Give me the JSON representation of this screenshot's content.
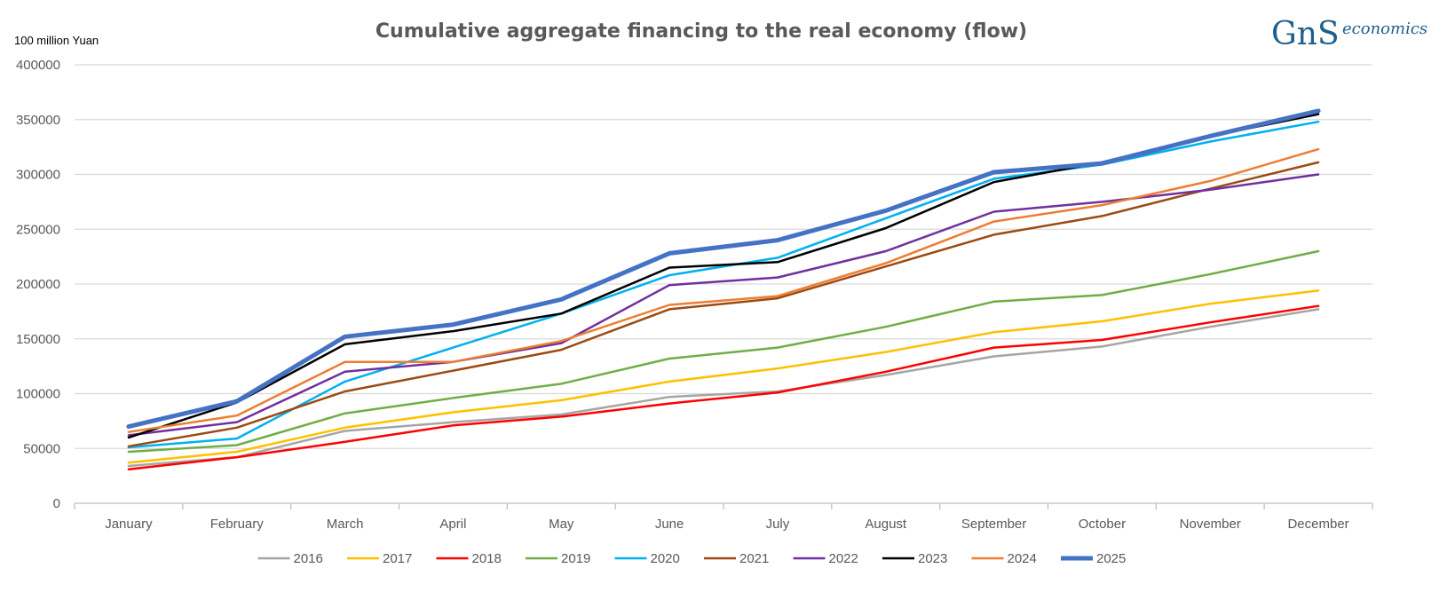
{
  "chart_data": {
    "type": "line",
    "title": "Cumulative aggregate financing to the real economy (flow)",
    "ylabel": "100 million Yuan",
    "ylim": [
      0,
      400000
    ],
    "yticks": [
      "0",
      "50000",
      "100000",
      "150000",
      "200000",
      "250000",
      "300000",
      "350000",
      "400000"
    ],
    "categories": [
      "January",
      "February",
      "March",
      "April",
      "May",
      "June",
      "July",
      "August",
      "September",
      "October",
      "November",
      "December"
    ],
    "legend_position": "bottom",
    "series": [
      {
        "name": "2016",
        "color": "#a5a5a5",
        "width": 2.5,
        "values": [
          34000,
          42000,
          66000,
          74000,
          81000,
          97000,
          102000,
          117000,
          134000,
          143000,
          161000,
          177000
        ]
      },
      {
        "name": "2017",
        "color": "#ffc000",
        "width": 2.5,
        "values": [
          37000,
          47000,
          69000,
          83000,
          94000,
          111000,
          123000,
          138000,
          156000,
          166000,
          182000,
          194000
        ]
      },
      {
        "name": "2018",
        "color": "#ff0000",
        "width": 2.5,
        "values": [
          31000,
          42000,
          56000,
          71000,
          79000,
          91000,
          101000,
          120000,
          142000,
          149000,
          165000,
          180000
        ]
      },
      {
        "name": "2019",
        "color": "#70ad47",
        "width": 2.5,
        "values": [
          47000,
          53000,
          82000,
          96000,
          109000,
          132000,
          142000,
          161000,
          184000,
          190000,
          209000,
          230000
        ]
      },
      {
        "name": "2020",
        "color": "#00b0f0",
        "width": 2.5,
        "values": [
          51000,
          59000,
          111000,
          142000,
          173000,
          208000,
          224000,
          260000,
          296000,
          309000,
          330000,
          348000
        ]
      },
      {
        "name": "2021",
        "color": "#9c4a12",
        "width": 2.5,
        "values": [
          52000,
          69000,
          102000,
          121000,
          140000,
          177000,
          187000,
          216000,
          245000,
          262000,
          287000,
          311000
        ]
      },
      {
        "name": "2022",
        "color": "#7030a0",
        "width": 2.5,
        "values": [
          62000,
          74000,
          120000,
          129000,
          146000,
          199000,
          206000,
          230000,
          266000,
          275000,
          286000,
          300000
        ]
      },
      {
        "name": "2023",
        "color": "#000000",
        "width": 2.5,
        "values": [
          60000,
          92000,
          145000,
          157000,
          173000,
          215000,
          220000,
          251000,
          293000,
          311000,
          335000,
          355000
        ]
      },
      {
        "name": "2024",
        "color": "#ed7d31",
        "width": 2.5,
        "values": [
          65000,
          80000,
          129000,
          129000,
          148000,
          181000,
          189000,
          219000,
          257000,
          272000,
          294000,
          323000
        ]
      },
      {
        "name": "2025",
        "color": "#4472c4",
        "width": 5,
        "values": [
          70000,
          93000,
          152000,
          163000,
          186000,
          228000,
          240000,
          267000,
          302000,
          310000,
          335000,
          358000
        ]
      }
    ]
  },
  "logo": {
    "letters": "GnS",
    "text": "economics"
  }
}
